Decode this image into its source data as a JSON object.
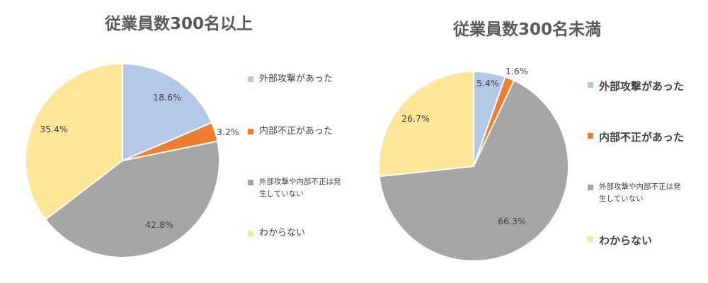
{
  "colors": {
    "external": "#B4C7E7",
    "internal": "#ED7D31",
    "none": "#A5A5A5",
    "unknown": "#FFE699"
  },
  "legend_labels": [
    "外部攻撃があった",
    "内部不正があった",
    "外部攻撃や内部不正は発生していない",
    "わからない"
  ],
  "chart_data": [
    {
      "type": "pie",
      "title": "従業員数300名以上",
      "categories": [
        "外部攻撃があった",
        "内部不正があった",
        "外部攻撃や内部不正は発生していない",
        "わからない"
      ],
      "values": [
        18.6,
        3.2,
        42.8,
        35.4
      ],
      "value_labels": [
        "18.6%",
        "3.2%",
        "42.8%",
        "35.4%"
      ],
      "legend": "right"
    },
    {
      "type": "pie",
      "title": "従業員数300名未満",
      "categories": [
        "外部攻撃があった",
        "内部不正があった",
        "外部攻撃や内部不正は発生していない",
        "わからない"
      ],
      "values": [
        5.4,
        1.6,
        66.3,
        26.7
      ],
      "value_labels": [
        "5.4%",
        "1.6%",
        "66.3%",
        "26.7%"
      ],
      "legend": "right"
    }
  ]
}
